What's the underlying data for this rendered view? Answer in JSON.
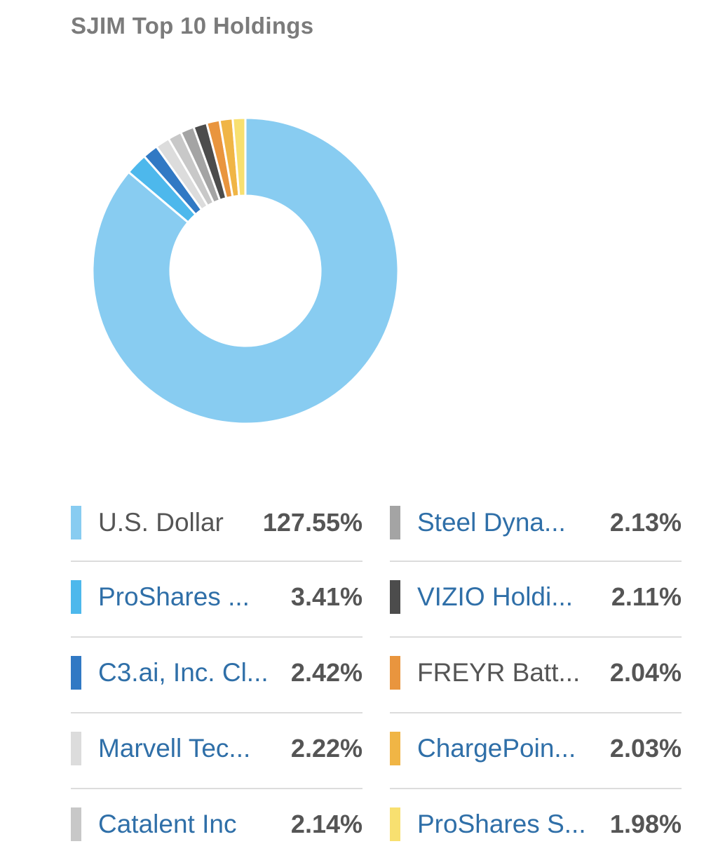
{
  "title": "SJIM Top 10 Holdings",
  "chart_data": {
    "type": "pie",
    "variant": "donut",
    "title": "SJIM Top 10 Holdings",
    "categories": [
      "U.S. Dollar",
      "ProShares ...",
      "C3.ai, Inc. Cl...",
      "Marvell Tec...",
      "Catalent Inc",
      "Steel Dyna...",
      "VIZIO Holdi...",
      "FREYR Batt...",
      "ChargePoin...",
      "ProShares S..."
    ],
    "values": [
      127.55,
      3.41,
      2.42,
      2.22,
      2.14,
      2.13,
      2.11,
      2.04,
      2.03,
      1.98
    ],
    "colors": [
      "#88ccf1",
      "#4db8ec",
      "#3179c4",
      "#dcdcdc",
      "#c8c8c8",
      "#a4a4a4",
      "#4c4c4c",
      "#e9953e",
      "#f0b545",
      "#f8e070"
    ],
    "legend_placement": "bottom"
  },
  "legend": {
    "items": [
      {
        "name": "U.S. Dollar",
        "value": "127.55%",
        "color": "#88ccf1",
        "style": "plain"
      },
      {
        "name": "ProShares ...",
        "value": "3.41%",
        "color": "#4db8ec",
        "style": "link"
      },
      {
        "name": "C3.ai, Inc. Cl...",
        "value": "2.42%",
        "color": "#3179c4",
        "style": "link"
      },
      {
        "name": "Marvell Tec...",
        "value": "2.22%",
        "color": "#dcdcdc",
        "style": "link"
      },
      {
        "name": "Catalent Inc",
        "value": "2.14%",
        "color": "#c8c8c8",
        "style": "link"
      },
      {
        "name": "Steel Dyna...",
        "value": "2.13%",
        "color": "#a4a4a4",
        "style": "link"
      },
      {
        "name": "VIZIO Holdi...",
        "value": "2.11%",
        "color": "#4c4c4c",
        "style": "link"
      },
      {
        "name": "FREYR Batt...",
        "value": "2.04%",
        "color": "#e9953e",
        "style": "plain"
      },
      {
        "name": "ChargePoin...",
        "value": "2.03%",
        "color": "#f0b545",
        "style": "link"
      },
      {
        "name": "ProShares S...",
        "value": "1.98%",
        "color": "#f8e070",
        "style": "link"
      }
    ]
  }
}
